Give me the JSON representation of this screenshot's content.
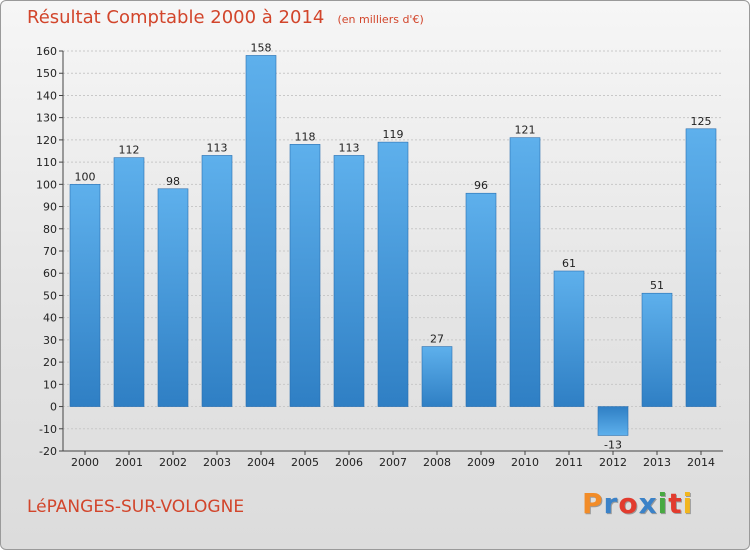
{
  "chart_data": {
    "type": "bar",
    "title": "Résultat Comptable 2000 à 2014",
    "unit_note": "(en milliers d'€)",
    "categories": [
      "2000",
      "2001",
      "2002",
      "2003",
      "2004",
      "2005",
      "2006",
      "2007",
      "2008",
      "2009",
      "2010",
      "2011",
      "2012",
      "2013",
      "2014"
    ],
    "values": [
      100,
      112,
      98,
      113,
      158,
      118,
      113,
      119,
      27,
      96,
      121,
      61,
      -13,
      51,
      125
    ],
    "value_labels": [
      "100",
      "112",
      "98",
      "113",
      "158",
      "118",
      "113",
      "119",
      "27",
      "96",
      "121",
      "61",
      "-13",
      "51",
      "125"
    ],
    "ylim": [
      -20,
      160
    ],
    "yticks": [
      -20,
      -10,
      0,
      10,
      20,
      30,
      40,
      50,
      60,
      70,
      80,
      90,
      100,
      110,
      120,
      130,
      140,
      150,
      160
    ],
    "grid": true,
    "bar_color": "#4f9fe0"
  },
  "footer": {
    "commune": "LéPANGES-SUR-VOLOGNE",
    "brand_letters": [
      "P",
      "r",
      "o",
      "x",
      "i",
      "t",
      "i"
    ],
    "brand_colors": [
      "#f28c28",
      "#3b82c8",
      "#e23b2e",
      "#3b82c8",
      "#48a942",
      "#e23b2e",
      "#f2b61f"
    ]
  }
}
